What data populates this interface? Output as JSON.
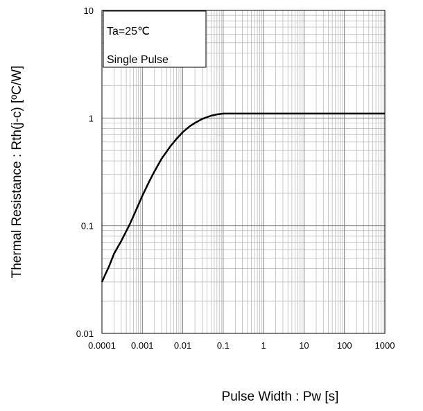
{
  "chart_data": {
    "type": "line",
    "title": "",
    "xlabel": "Pulse Width : Pw [s]",
    "ylabel": "Thermal  Resistance : Rth(j-c)  [ºC/W]",
    "x_scale": "log",
    "y_scale": "log",
    "xlim": [
      0.0001,
      1000
    ],
    "ylim": [
      0.01,
      10
    ],
    "grid": true,
    "x_ticks": [
      "0.0001",
      "0.001",
      "0.01",
      "0.1",
      "1",
      "10",
      "100",
      "1000"
    ],
    "y_ticks": [
      "0.01",
      "0.1",
      "1",
      "10"
    ],
    "annotations": [
      "Ta=25℃",
      "Single Pulse"
    ],
    "series": [
      {
        "x": [
          0.0001,
          0.00012,
          0.00015,
          0.0002,
          0.0003,
          0.0005,
          0.0007,
          0.001,
          0.0015,
          0.002,
          0.003,
          0.005,
          0.007,
          0.01,
          0.015,
          0.02,
          0.03,
          0.05,
          0.07,
          0.1,
          1,
          10,
          100,
          1000
        ],
        "y": [
          0.03,
          0.035,
          0.042,
          0.055,
          0.072,
          0.105,
          0.14,
          0.19,
          0.26,
          0.32,
          0.42,
          0.55,
          0.64,
          0.74,
          0.84,
          0.9,
          0.98,
          1.05,
          1.08,
          1.1,
          1.1,
          1.1,
          1.1,
          1.1
        ]
      }
    ]
  }
}
